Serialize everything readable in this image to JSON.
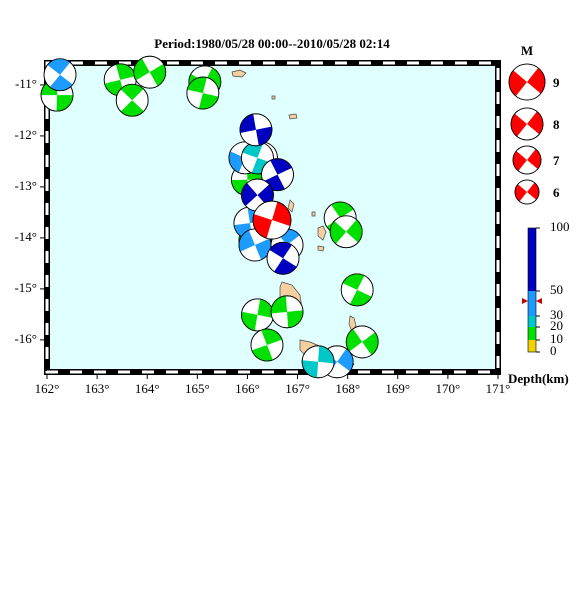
{
  "chart_data": {
    "type": "beachball-map",
    "title": "Period:1980/05/28 00:00--2010/05/28 02:14",
    "xlim": [
      162,
      171
    ],
    "ylim": [
      -16.63,
      -10.57
    ],
    "xticks": [
      {
        "value": 162,
        "label": "162°"
      },
      {
        "value": 163,
        "label": "163°"
      },
      {
        "value": 164,
        "label": "164°"
      },
      {
        "value": 165,
        "label": "165°"
      },
      {
        "value": 166,
        "label": "166°"
      },
      {
        "value": 167,
        "label": "167°"
      },
      {
        "value": 168,
        "label": "168°"
      },
      {
        "value": 169,
        "label": "169°"
      },
      {
        "value": 170,
        "label": "170°"
      },
      {
        "value": 171,
        "label": "171°"
      }
    ],
    "yticks": [
      {
        "value": -11,
        "label": "-11°"
      },
      {
        "value": -12,
        "label": "-12°"
      },
      {
        "value": -13,
        "label": "-13°"
      },
      {
        "value": -14,
        "label": "-14°"
      },
      {
        "value": -15,
        "label": "-15°"
      },
      {
        "value": -16,
        "label": "-16°"
      }
    ],
    "series": [
      {
        "color": "#00e000",
        "x": [
          162.2,
          163.46,
          164.05,
          163.7,
          165.15,
          165.11,
          166.0,
          166.15,
          167.85,
          167.97,
          168.19,
          166.2,
          166.79,
          166.39,
          168.29
        ],
        "values": [
          -11.2,
          -10.9,
          -10.75,
          -11.3,
          -10.94,
          -11.16,
          -12.86,
          -14.04,
          -13.61,
          -13.88,
          -15.02,
          -15.51,
          -15.45,
          -16.1,
          -16.04
        ]
      },
      {
        "color": "#1e9bff",
        "x": [
          162.26,
          165.95,
          166.28,
          166.05,
          166.15,
          166.79,
          167.79
        ],
        "values": [
          -10.8,
          -12.43,
          -12.43,
          -13.71,
          -14.14,
          -14.14,
          -16.43
        ]
      },
      {
        "color": "#00c8c8",
        "x": [
          166.2,
          167.41
        ],
        "values": [
          -12.43,
          -16.43
        ]
      },
      {
        "color": "#0000c0",
        "x": [
          166.17,
          166.6,
          166.2,
          166.71
        ],
        "values": [
          -11.88,
          -12.76,
          -13.16,
          -14.4
        ]
      },
      {
        "color": "#ff0000",
        "x": [
          166.49
        ],
        "values": [
          -13.65
        ]
      }
    ],
    "legend": {
      "title": "M",
      "magnitudes": [
        9,
        8,
        7,
        6
      ],
      "color": "#ff0000"
    },
    "depth_scale": {
      "label": "Depth(km)",
      "ticks": [
        100,
        50,
        30,
        20,
        10,
        0
      ],
      "colors": [
        "#0000c0",
        "#1e9bff",
        "#00c8c8",
        "#00e000",
        "#f0d000"
      ]
    }
  }
}
